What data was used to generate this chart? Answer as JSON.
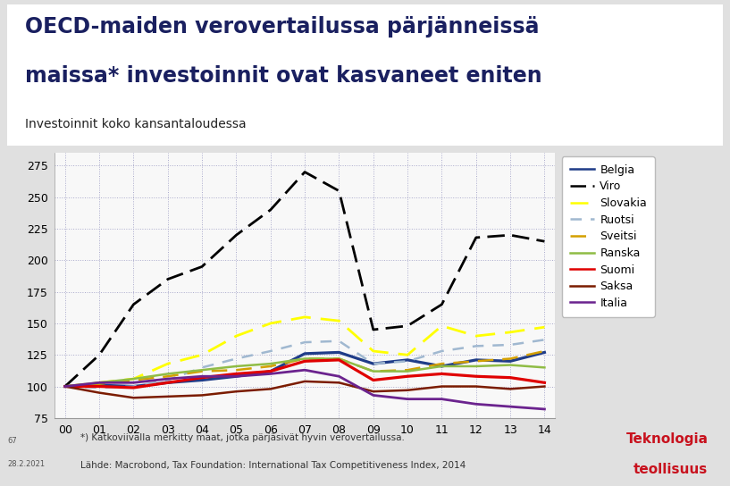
{
  "title_line1": "OECD-maiden verovertailussa pärjänneissä",
  "title_line2": "maissa* investoinnit ovat kasvaneet eniten",
  "subtitle": "Investoinnit koko kansantaloudessa",
  "xlim": [
    -0.3,
    14.3
  ],
  "ylim": [
    75,
    285
  ],
  "yticks": [
    75,
    100,
    125,
    150,
    175,
    200,
    225,
    250,
    275
  ],
  "xtick_labels": [
    "00",
    "01",
    "02",
    "03",
    "04",
    "05",
    "06",
    "07",
    "08",
    "09",
    "10",
    "11",
    "12",
    "13",
    "14"
  ],
  "footnote1": "*) Katkoviivalla merkitty maat, jotka pärjäsivät hyvin verovertailussa.",
  "footnote2": "Lähde: Macrobond, Tax Foundation: International Tax Competitiveness Index, 2014",
  "footnote_left1": "67",
  "footnote_left2": "28.2.2021",
  "logo_text1": "Teknologia",
  "logo_text2": "teollisuus",
  "outer_bg": "#e0e0e0",
  "title_bg": "#ffffff",
  "plot_bg": "#f8f8f8",
  "bottom_bg": "#e0e0e0",
  "series": [
    {
      "label": "Belgia",
      "color": "#1f3c88",
      "linestyle": "solid",
      "linewidth": 2.3,
      "dashes": null,
      "values": [
        100,
        101,
        100,
        103,
        105,
        108,
        112,
        126,
        127,
        118,
        121,
        116,
        121,
        120,
        127
      ]
    },
    {
      "label": "Viro",
      "color": "#000000",
      "linestyle": "dashed",
      "linewidth": 2.0,
      "dashes": [
        7,
        3
      ],
      "values": [
        100,
        125,
        165,
        185,
        195,
        220,
        240,
        270,
        255,
        145,
        148,
        165,
        218,
        220,
        215
      ]
    },
    {
      "label": "Slovakia",
      "color": "#ffff00",
      "linestyle": "dashed",
      "linewidth": 2.0,
      "dashes": [
        8,
        4
      ],
      "values": [
        100,
        103,
        106,
        118,
        125,
        140,
        150,
        155,
        152,
        128,
        125,
        148,
        140,
        143,
        147
      ]
    },
    {
      "label": "Ruotsi",
      "color": "#a0b8d0",
      "linestyle": "dashed",
      "linewidth": 1.8,
      "dashes": [
        5,
        4
      ],
      "values": [
        100,
        99,
        100,
        105,
        115,
        122,
        128,
        135,
        136,
        118,
        120,
        128,
        132,
        133,
        137
      ]
    },
    {
      "label": "Sveitsi",
      "color": "#d4a000",
      "linestyle": "dashed",
      "linewidth": 1.8,
      "dashes": [
        7,
        4
      ],
      "values": [
        100,
        102,
        105,
        108,
        112,
        113,
        116,
        122,
        122,
        112,
        113,
        118,
        120,
        122,
        128
      ]
    },
    {
      "label": "Ranska",
      "color": "#8fbc45",
      "linestyle": "solid",
      "linewidth": 1.8,
      "dashes": null,
      "values": [
        100,
        103,
        106,
        110,
        113,
        116,
        118,
        122,
        122,
        112,
        112,
        116,
        116,
        117,
        115
      ]
    },
    {
      "label": "Suomi",
      "color": "#e00000",
      "linestyle": "solid",
      "linewidth": 2.3,
      "dashes": null,
      "values": [
        100,
        100,
        99,
        103,
        107,
        110,
        112,
        120,
        121,
        105,
        108,
        110,
        108,
        107,
        103
      ]
    },
    {
      "label": "Saksa",
      "color": "#7b1c00",
      "linestyle": "solid",
      "linewidth": 1.8,
      "dashes": null,
      "values": [
        100,
        95,
        91,
        92,
        93,
        96,
        98,
        104,
        103,
        96,
        97,
        100,
        100,
        98,
        100
      ]
    },
    {
      "label": "Italia",
      "color": "#6b238e",
      "linestyle": "solid",
      "linewidth": 2.0,
      "dashes": null,
      "values": [
        100,
        103,
        103,
        106,
        108,
        108,
        110,
        113,
        108,
        93,
        90,
        90,
        86,
        84,
        82
      ]
    }
  ]
}
